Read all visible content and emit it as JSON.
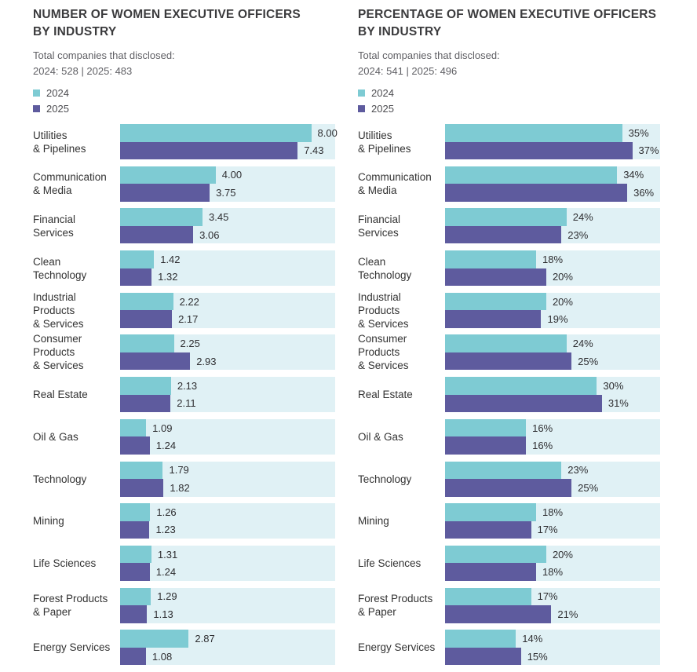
{
  "colors": {
    "teal_2024": "#7ECBD3",
    "purple_2025": "#5E5B9E",
    "bar_track": "#E0F1F5",
    "title_text": "#3B3B3D",
    "muted_text": "#606065",
    "label_text": "#333333",
    "value_text": "#2E2E31",
    "background": "#FFFFFF"
  },
  "charts": [
    {
      "title": "NUMBER OF WOMEN EXECUTIVE OFFICERS\nBY INDUSTRY",
      "subtitle": "Total companies that disclosed:",
      "disclosure_totals": "2024: 528 | 2025: 483",
      "legend": [
        {
          "label": "2024",
          "color": "#7ECBD3"
        },
        {
          "label": "2025",
          "color": "#5E5B9E"
        }
      ]
    },
    {
      "title": "PERCENTAGE OF WOMEN EXECUTIVE OFFICERS\nBY INDUSTRY",
      "subtitle": "Total companies that disclosed:",
      "disclosure_totals": "2024: 541 | 2025: 496",
      "legend": [
        {
          "label": "2024",
          "color": "#7ECBD3"
        },
        {
          "label": "2025",
          "color": "#5E5B9E"
        }
      ]
    }
  ],
  "category_display": [
    "Utilities\n& Pipelines",
    "Communication\n& Media",
    "Financial\nServices",
    "Clean\nTechnology",
    "Industrial\nProducts\n& Services",
    "Consumer\nProducts\n& Services",
    "Real Estate",
    "Oil & Gas",
    "Technology",
    "Mining",
    "Life Sciences",
    "Forest Products\n& Paper",
    "Energy Services"
  ],
  "chart_data": [
    {
      "type": "bar",
      "orientation": "horizontal",
      "title": "NUMBER OF WOMEN EXECUTIVE OFFICERS BY INDUSTRY",
      "categories": [
        "Utilities & Pipelines",
        "Communication & Media",
        "Financial Services",
        "Clean Technology",
        "Industrial Products & Services",
        "Consumer Products & Services",
        "Real Estate",
        "Oil & Gas",
        "Technology",
        "Mining",
        "Life Sciences",
        "Forest Products & Paper",
        "Energy Services"
      ],
      "series": [
        {
          "name": "2024",
          "color": "#7ECBD3",
          "values": [
            8.0,
            4.0,
            3.45,
            1.42,
            2.22,
            2.25,
            2.13,
            1.09,
            1.79,
            1.26,
            1.31,
            1.29,
            2.87
          ]
        },
        {
          "name": "2025",
          "color": "#5E5B9E",
          "values": [
            7.43,
            3.75,
            3.06,
            1.32,
            2.17,
            2.93,
            2.11,
            1.24,
            1.82,
            1.23,
            1.24,
            1.13,
            1.08
          ]
        }
      ],
      "value_format": "number_2dp",
      "xlim": [
        0,
        9
      ],
      "grid": false,
      "data_labels": true,
      "legend_position": "top-left"
    },
    {
      "type": "bar",
      "orientation": "horizontal",
      "title": "PERCENTAGE OF WOMEN EXECUTIVE OFFICERS BY INDUSTRY",
      "categories": [
        "Utilities & Pipelines",
        "Communication & Media",
        "Financial Services",
        "Clean Technology",
        "Industrial Products & Services",
        "Consumer Products & Services",
        "Real Estate",
        "Oil & Gas",
        "Technology",
        "Mining",
        "Life Sciences",
        "Forest Products & Paper",
        "Energy Services"
      ],
      "series": [
        {
          "name": "2024",
          "color": "#7ECBD3",
          "values": [
            35,
            34,
            24,
            18,
            20,
            24,
            30,
            16,
            23,
            18,
            20,
            17,
            14
          ]
        },
        {
          "name": "2025",
          "color": "#5E5B9E",
          "values": [
            37,
            36,
            23,
            20,
            19,
            25,
            31,
            16,
            25,
            17,
            18,
            21,
            15
          ]
        }
      ],
      "value_format": "percent",
      "xlim": [
        0,
        42.5
      ],
      "grid": false,
      "data_labels": true,
      "legend_position": "top-left"
    }
  ]
}
